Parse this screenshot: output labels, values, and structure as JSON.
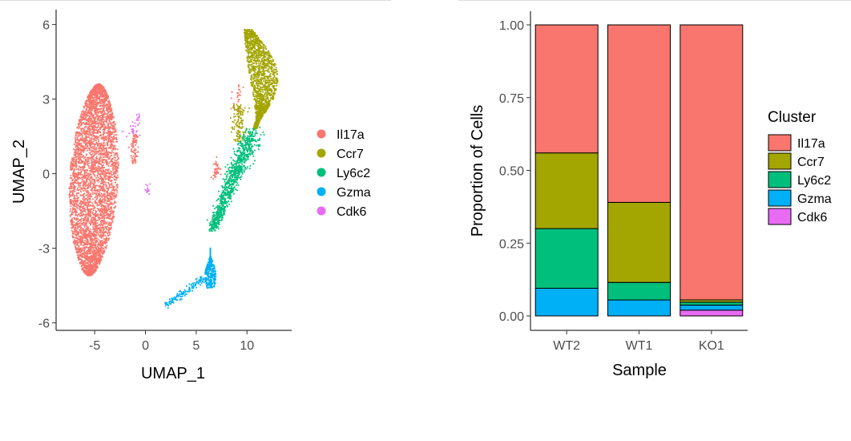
{
  "chart_data": [
    {
      "type": "scatter",
      "title": "",
      "xlabel": "UMAP_1",
      "ylabel": "UMAP_2",
      "xlim": [
        -8.8,
        14.4
      ],
      "ylim": [
        -6.3,
        6.6
      ],
      "xticks": [
        "-5",
        "0",
        "5",
        "10"
      ],
      "yticks": [
        "-6",
        "-3",
        "0",
        "3",
        "6"
      ],
      "grid": false,
      "legend": "right",
      "series": [
        {
          "name": "Il17a",
          "color": "#F8766D"
        },
        {
          "name": "Ccr7",
          "color": "#A3A500"
        },
        {
          "name": "Ly6c2",
          "color": "#00BF7D"
        },
        {
          "name": "Gzma",
          "color": "#00B0F6"
        },
        {
          "name": "Cdk6",
          "color": "#E76BF3"
        }
      ]
    },
    {
      "type": "bar",
      "stacked": true,
      "title": "",
      "xlabel": "Sample",
      "ylabel": "Proportion of Cells",
      "categories": [
        "WT2",
        "WT1",
        "KO1"
      ],
      "ylim": [
        0,
        1
      ],
      "yticks": [
        "0.00",
        "0.25",
        "0.50",
        "0.75",
        "1.00"
      ],
      "grid": false,
      "legend_title": "Cluster",
      "legend": "right",
      "series": [
        {
          "name": "Il17a",
          "color": "#F8766D",
          "values": [
            0.44,
            0.61,
            0.945
          ]
        },
        {
          "name": "Ccr7",
          "color": "#A3A500",
          "values": [
            0.26,
            0.275,
            0.008
          ]
        },
        {
          "name": "Ly6c2",
          "color": "#00BF7D",
          "values": [
            0.205,
            0.06,
            0.01
          ]
        },
        {
          "name": "Gzma",
          "color": "#00B0F6",
          "values": [
            0.095,
            0.055,
            0.017
          ]
        },
        {
          "name": "Cdk6",
          "color": "#E76BF3",
          "values": [
            0.0,
            0.0,
            0.02
          ]
        }
      ]
    }
  ]
}
